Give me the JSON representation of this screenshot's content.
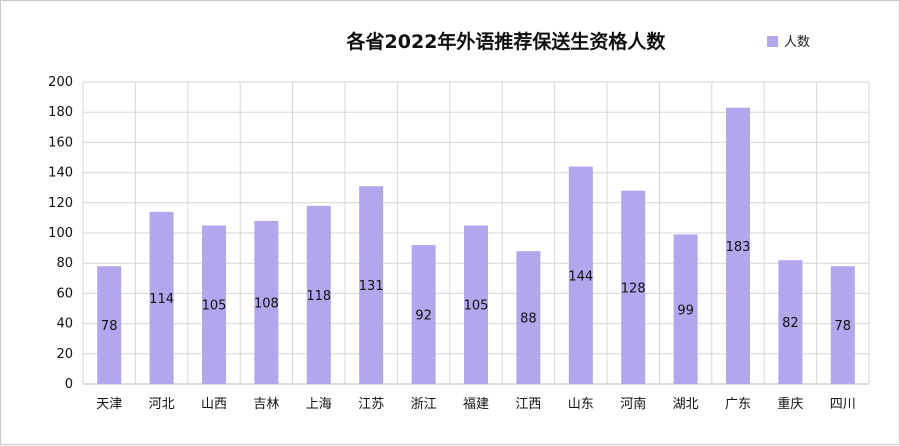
{
  "chart_data": {
    "type": "bar",
    "title": "各省2022年外语推荐保送生资格人数",
    "categories": [
      "天津",
      "河北",
      "山西",
      "吉林",
      "上海",
      "江苏",
      "浙江",
      "福建",
      "江西",
      "山东",
      "河南",
      "湖北",
      "广东",
      "重庆",
      "四川"
    ],
    "series": [
      {
        "name": "人数",
        "values": [
          78,
          114,
          105,
          108,
          118,
          131,
          92,
          105,
          88,
          144,
          128,
          99,
          183,
          82,
          78
        ]
      }
    ],
    "ylim": [
      0,
      200
    ],
    "yticks": [
      0,
      20,
      40,
      60,
      80,
      100,
      120,
      140,
      160,
      180,
      200
    ],
    "grid": true,
    "legend": "top-right",
    "colors": {
      "bar": "#b3a6ec",
      "grid": "#d7d7d7"
    }
  }
}
